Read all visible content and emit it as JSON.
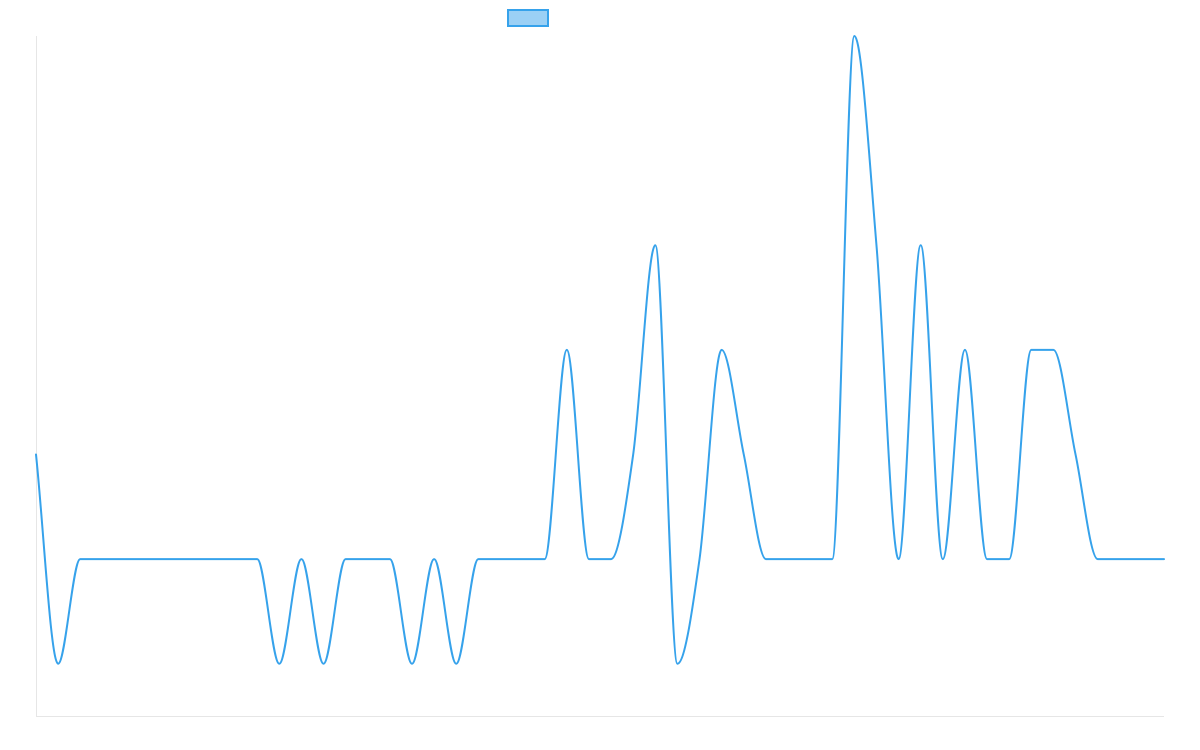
{
  "chart_data": {
    "type": "line",
    "title": "",
    "xlabel": "",
    "ylabel": "",
    "legend": {
      "position": "top-center",
      "entries": [
        {
          "swatch_fill": "#9bd0f5",
          "swatch_stroke": "#36a2eb"
        }
      ]
    },
    "grid": false,
    "ylim": [
      -1.5,
      5
    ],
    "x": [
      0,
      1,
      2,
      3,
      4,
      5,
      6,
      7,
      8,
      9,
      10,
      11,
      12,
      13,
      14,
      15,
      16,
      17,
      18,
      19,
      20,
      21,
      22,
      23,
      24,
      25,
      26,
      27,
      28,
      29,
      30,
      31,
      32,
      33,
      34,
      35,
      36,
      37,
      38,
      39,
      40,
      41,
      42,
      43,
      44,
      45,
      46,
      47,
      48,
      49,
      50,
      51
    ],
    "series": [
      {
        "color": "#36a2eb",
        "values": [
          1,
          -1,
          0,
          0,
          0,
          0,
          0,
          0,
          0,
          0,
          0,
          -1,
          0,
          -1,
          0,
          0,
          0,
          -1,
          0,
          -1,
          0,
          0,
          0,
          0,
          2,
          0,
          0,
          1,
          3,
          -1,
          0,
          2,
          1,
          0,
          0,
          0,
          0,
          5,
          3,
          0,
          3,
          0,
          2,
          0,
          0,
          2,
          2,
          1,
          0,
          0,
          0,
          0
        ]
      }
    ]
  }
}
